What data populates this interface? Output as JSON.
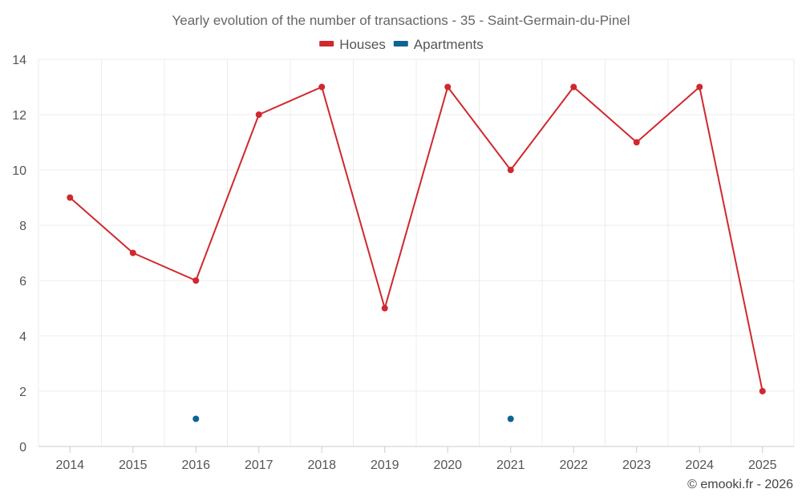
{
  "chart_data": {
    "type": "line",
    "title": "Yearly evolution of the number of transactions - 35 - Saint-Germain-du-Pinel",
    "categories": [
      "2014",
      "2015",
      "2016",
      "2017",
      "2018",
      "2019",
      "2020",
      "2021",
      "2022",
      "2023",
      "2024",
      "2025"
    ],
    "ylim": [
      0,
      14
    ],
    "yticks": [
      0,
      2,
      4,
      6,
      8,
      10,
      12,
      14
    ],
    "grid": true,
    "legend_position": "top-center",
    "series": [
      {
        "name": "Houses",
        "color": "#d0282e",
        "line": true,
        "values": [
          9,
          7,
          6,
          12,
          13,
          5,
          13,
          10,
          13,
          11,
          13,
          2
        ]
      },
      {
        "name": "Apartments",
        "color": "#0e6396",
        "line": false,
        "values": [
          null,
          null,
          1,
          null,
          null,
          null,
          null,
          1,
          null,
          null,
          null,
          null
        ]
      }
    ],
    "credit": "© emooki.fr - 2026"
  }
}
